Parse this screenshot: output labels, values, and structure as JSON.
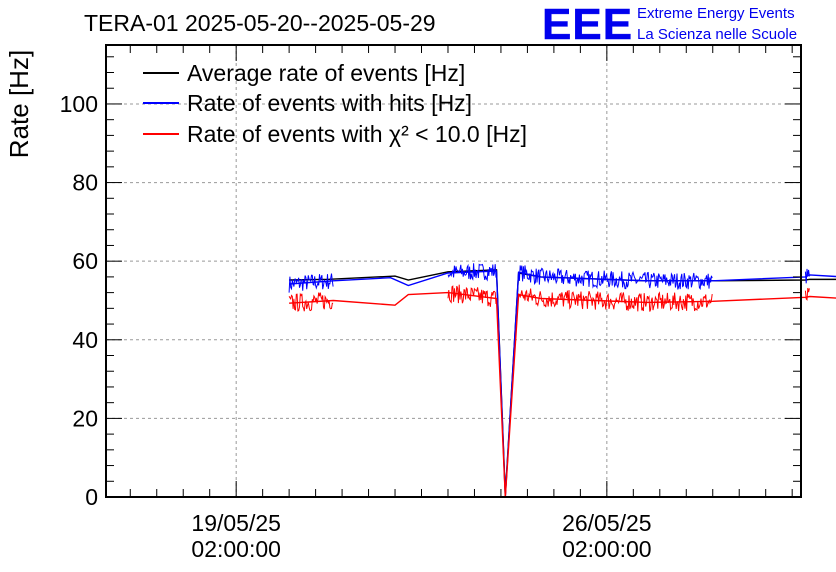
{
  "logo": {
    "mark": "EEE",
    "line1": "Extreme Energy Events",
    "line2": "La Scienza nelle Scuole"
  },
  "colors": {
    "avg": "#000000",
    "hits": "#0000ff",
    "chi2": "#ff0000",
    "logo": "#0000ee",
    "grid": "#999999"
  },
  "chart_data": {
    "type": "line",
    "title": "TERA-01 2025-05-20--2025-05-29",
    "xlabel": "",
    "ylabel": "Rate [Hz]",
    "ylim": [
      0,
      115
    ],
    "xlim": [
      "2025-05-16 15:00",
      "2025-05-29 18:00"
    ],
    "yticks": [
      0,
      20,
      40,
      60,
      80,
      100
    ],
    "xticks": [
      {
        "t": "2025-05-19 02:00",
        "line1": "19/05/25",
        "line2": "02:00:00"
      },
      {
        "t": "2025-05-26 02:00",
        "line1": "26/05/25",
        "line2": "02:00:00"
      }
    ],
    "grid": true,
    "legend_position": "top-left",
    "series": [
      {
        "name": "Average rate of events [Hz]",
        "color": "#000000",
        "points": [
          [
            "2025-05-20 02:00",
            55.2
          ],
          [
            "2025-05-20 20:00",
            55.4
          ],
          [
            "2025-05-22 02:00",
            56.2
          ],
          [
            "2025-05-22 08:00",
            55.2
          ],
          [
            "2025-05-23 02:00",
            57.3
          ],
          [
            "2025-05-24 00:00",
            57.8
          ],
          [
            "2025-05-24 04:00",
            0.5
          ],
          [
            "2025-05-24 10:00",
            57.0
          ],
          [
            "2025-05-24 20:00",
            56.0
          ],
          [
            "2025-05-26 20:00",
            55.0
          ],
          [
            "2025-05-28 02:00",
            55.0
          ],
          [
            "2025-05-29 20:00",
            55.2
          ],
          [
            "2025-05-29 22:00",
            55.4
          ],
          [
            "2025-05-31 18:00",
            55.3
          ]
        ]
      },
      {
        "name": "Rate of events with hits [Hz]",
        "color": "#0000ff",
        "points": [
          [
            "2025-05-20 02:00",
            54.2
          ],
          [
            "2025-05-20 22:00",
            55.0
          ],
          [
            "2025-05-22 00:00",
            55.8
          ],
          [
            "2025-05-22 08:00",
            53.8
          ],
          [
            "2025-05-23 02:00",
            57.0
          ],
          [
            "2025-05-24 00:00",
            57.5
          ],
          [
            "2025-05-24 04:00",
            0.0
          ],
          [
            "2025-05-24 10:00",
            57.2
          ],
          [
            "2025-05-24 20:00",
            56.0
          ],
          [
            "2025-05-26 20:00",
            55.0
          ],
          [
            "2025-05-28 02:00",
            55.0
          ],
          [
            "2025-05-29 20:00",
            56.0
          ],
          [
            "2025-05-29 22:00",
            56.5
          ],
          [
            "2025-05-31 18:00",
            55.0
          ]
        ]
      },
      {
        "name": "Rate of events with χ² < 10.0 [Hz]",
        "color": "#ff0000",
        "points": [
          [
            "2025-05-20 02:00",
            49.3
          ],
          [
            "2025-05-20 22:00",
            50.0
          ],
          [
            "2025-05-22 02:00",
            48.8
          ],
          [
            "2025-05-22 08:00",
            51.5
          ],
          [
            "2025-05-23 02:00",
            52.0
          ],
          [
            "2025-05-24 00:00",
            50.5
          ],
          [
            "2025-05-24 04:00",
            0.0
          ],
          [
            "2025-05-24 10:00",
            51.5
          ],
          [
            "2025-05-24 20:00",
            50.5
          ],
          [
            "2025-05-26 20:00",
            49.5
          ],
          [
            "2025-05-28 02:00",
            49.8
          ],
          [
            "2025-05-29 20:00",
            50.8
          ],
          [
            "2025-05-29 22:00",
            51.0
          ],
          [
            "2025-05-31 18:00",
            49.5
          ]
        ]
      }
    ]
  }
}
